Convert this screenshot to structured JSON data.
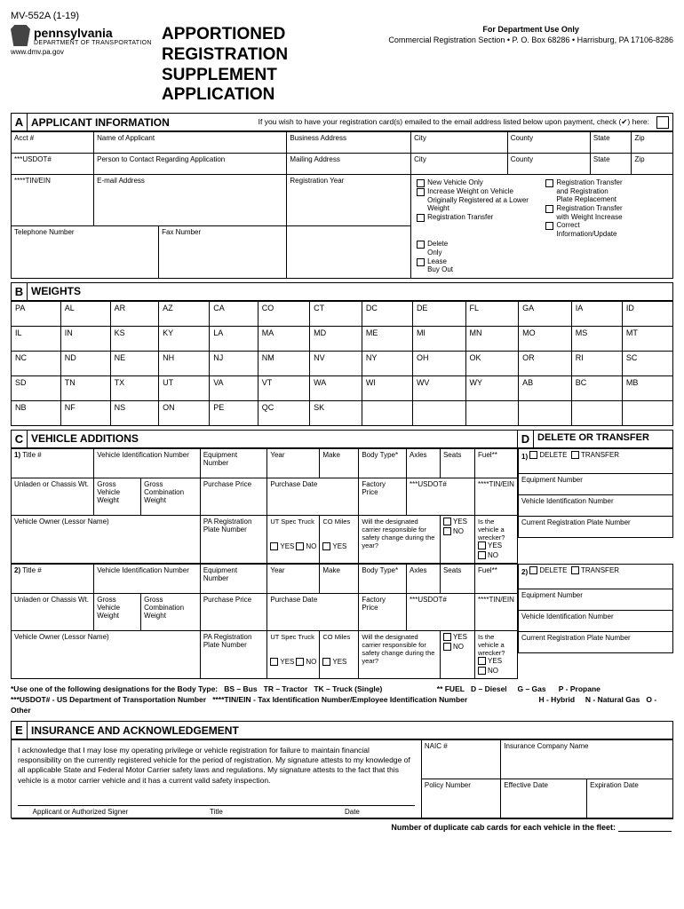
{
  "meta": {
    "form_number": "MV-552A (1-19)",
    "state": "pennsylvania",
    "dept": "DEPARTMENT OF TRANSPORTATION",
    "url": "www.dmv.pa.gov",
    "title1": "APPORTIONED REGISTRATION",
    "title2": "SUPPLEMENT APPLICATION",
    "dept_use": "For Department Use Only",
    "dept_addr": "Commercial Registration Section • P. O. Box 68286 • Harrisburg, PA 17106-8286"
  },
  "A": {
    "letter": "A",
    "title": "APPLICANT INFORMATION",
    "note": "If you wish to have your registration card(s) emailed to the email address listed below upon payment, check (✔) here:",
    "fields": {
      "acct": "Acct #",
      "name": "Name of Applicant",
      "business": "Business Address",
      "city": "City",
      "county": "County",
      "state": "State",
      "zip": "Zip",
      "usdot": "***USDOT#",
      "contact": "Person to Contact Regarding Application",
      "mailing": "Mailing Address",
      "tin": "****TIN/EIN",
      "email": "E-mail Address",
      "regyear": "Registration Year",
      "phone": "Telephone Number",
      "fax": "Fax Number"
    },
    "checks": {
      "newveh": "New Vehicle Only",
      "increase": "Increase Weight on Vehicle Originally Registered at a Lower Weight",
      "regtrans": "Registration Transfer",
      "regplatetrans": "Registration Transfer and Registration Plate Replacement",
      "regwtinc": "Registration Transfer with Weight Increase",
      "correct": "Correct Information/Update",
      "delonly": "Delete Only",
      "lease": "Lease Buy Out"
    }
  },
  "B": {
    "letter": "B",
    "title": "WEIGHTS",
    "states": [
      [
        "PA",
        "AL",
        "AR",
        "AZ",
        "CA",
        "CO",
        "CT",
        "DC",
        "DE",
        "FL",
        "GA",
        "IA",
        "ID"
      ],
      [
        "IL",
        "IN",
        "KS",
        "KY",
        "LA",
        "MA",
        "MD",
        "ME",
        "MI",
        "MN",
        "MO",
        "MS",
        "MT"
      ],
      [
        "NC",
        "ND",
        "NE",
        "NH",
        "NJ",
        "NM",
        "NV",
        "NY",
        "OH",
        "OK",
        "OR",
        "RI",
        "SC"
      ],
      [
        "SD",
        "TN",
        "TX",
        "UT",
        "VA",
        "VT",
        "WA",
        "WI",
        "WV",
        "WY",
        "AB",
        "BC",
        "MB"
      ],
      [
        "NB",
        "NF",
        "NS",
        "ON",
        "PE",
        "QC",
        "SK",
        "",
        "",
        "",
        "",
        "",
        ""
      ]
    ]
  },
  "C": {
    "letter": "C",
    "title": "VEHICLE ADDITIONS",
    "row": {
      "title": "Title #",
      "vin": "Vehicle Identification Number",
      "equip": "Equipment Number",
      "year": "Year",
      "make": "Make",
      "body": "Body Type*",
      "axles": "Axles",
      "seats": "Seats",
      "fuel": "Fuel**",
      "unladen": "Unladen or Chassis Wt.",
      "gross": "Gross Vehicle Weight",
      "combo": "Gross Combination Weight",
      "price": "Purchase Price",
      "pdate": "Purchase Date",
      "factory": "Factory Price",
      "usdot": "***USDOT#",
      "tin": "****TIN/EIN",
      "owner": "Vehicle Owner (Lessor Name)",
      "paplate": "PA Registration Plate Number",
      "utspec": "UT Spec Truck",
      "comiles": "CO Miles",
      "carrier": "Will the designated carrier responsible for safety change during the year?",
      "wrecker": "Is the vehicle a wrecker?"
    }
  },
  "D": {
    "letter": "D",
    "title": "DELETE OR TRANSFER",
    "delete": "DELETE",
    "transfer": "TRANSFER",
    "equip": "Equipment Number",
    "vin": "Vehicle Identification Number",
    "plate": "Current Registration Plate Number"
  },
  "notes": {
    "body": "*Use one of the following designations for the Body Type:",
    "bs": "BS – Bus",
    "tr": "TR – Tractor",
    "tk": "TK – Truck (Single)",
    "usdot": "***USDOT# - US Department of Transportation Number",
    "tin": "****TIN/EIN - Tax Identification Number/Employee Identification Number",
    "fuel": "** FUEL",
    "d": "D – Diesel",
    "g": "G – Gas",
    "p": "P - Propane",
    "h": "H - Hybrid",
    "n": "N - Natural Gas",
    "o": "O - Other"
  },
  "E": {
    "letter": "E",
    "title": "INSURANCE AND ACKNOWLEDGEMENT",
    "ack": "I acknowledge that I may lose my operating privilege or vehicle registration for failure to maintain financial responsibility on the currently registered vehicle for the period of registration. My signature attests to my knowledge of all applicable State and Federal Motor Carrier safety laws and regulations. My signature attests to the fact that this vehicle is a motor carrier vehicle and it has a current valid safety inspection.",
    "sig": "Applicant or Authorized Signer",
    "sigtitle": "Title",
    "date": "Date",
    "naic": "NAIC #",
    "company": "Insurance Company Name",
    "policy": "Policy Number",
    "effdate": "Effective Date",
    "expdate": "Expiration Date",
    "dup": "Number of duplicate cab cards for each vehicle in the fleet:"
  },
  "yn": {
    "yes": "YES",
    "no": "NO"
  }
}
